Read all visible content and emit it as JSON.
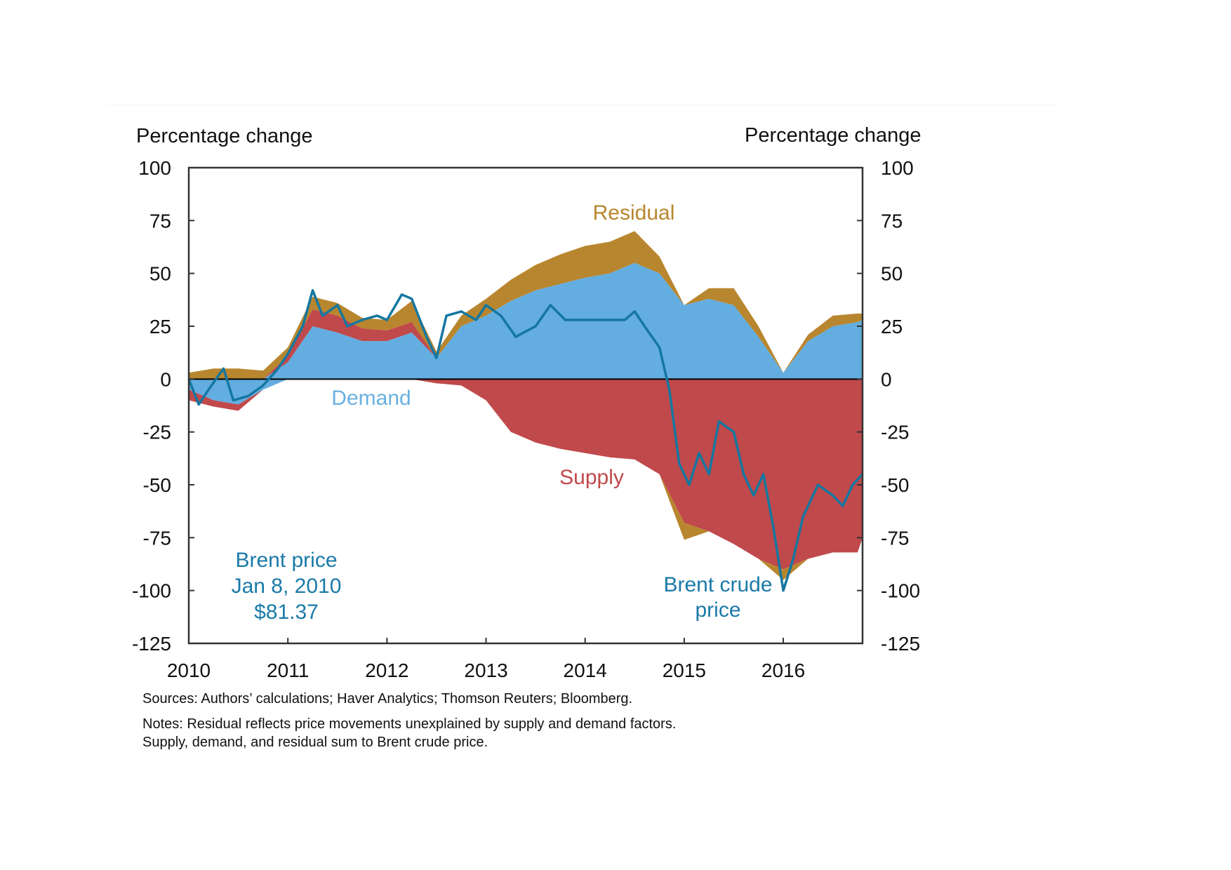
{
  "chart_data": {
    "type": "area",
    "stacked": true,
    "left_axis_title": "Percentage change",
    "right_axis_title": "Percentage change",
    "ylim": [
      -125,
      100
    ],
    "yticks": [
      "100",
      "75",
      "50",
      "25",
      "0",
      "-25",
      "-50",
      "-75",
      "-100",
      "-125"
    ],
    "ytick_values": [
      100,
      75,
      50,
      25,
      0,
      -25,
      -50,
      -75,
      -100,
      -125
    ],
    "xlim": [
      2010,
      2016.8
    ],
    "xticks": [
      "2010",
      "2011",
      "2012",
      "2013",
      "2014",
      "2015",
      "2016"
    ],
    "xtick_values": [
      2010,
      2011,
      2012,
      2013,
      2014,
      2015,
      2016
    ],
    "grid": false,
    "colors": {
      "demand": "#63ade0",
      "supply": "#c0494b",
      "residual": "#b8862e",
      "brent": "#1577a0"
    },
    "x": [
      2010,
      2010.25,
      2010.5,
      2010.75,
      2011,
      2011.25,
      2011.5,
      2011.75,
      2012,
      2012.25,
      2012.5,
      2012.75,
      2013,
      2013.25,
      2013.5,
      2013.75,
      2014,
      2014.25,
      2014.5,
      2014.75,
      2015,
      2015.25,
      2015.5,
      2015.75,
      2016,
      2016.25,
      2016.5,
      2016.75,
      2016.8
    ],
    "series": [
      {
        "name": "Demand",
        "values": [
          -5,
          -10,
          -12,
          -5,
          8,
          25,
          22,
          18,
          18,
          22,
          10,
          25,
          30,
          37,
          42,
          45,
          48,
          50,
          55,
          50,
          35,
          38,
          35,
          20,
          3,
          18,
          25,
          27,
          28
        ]
      },
      {
        "name": "Supply",
        "values": [
          -5,
          -3,
          -3,
          0,
          3,
          8,
          8,
          6,
          5,
          5,
          -2,
          -3,
          -10,
          -25,
          -30,
          -33,
          -35,
          -37,
          -38,
          -45,
          -68,
          -72,
          -78,
          -85,
          -90,
          -85,
          -82,
          -82,
          -75
        ]
      },
      {
        "name": "Residual",
        "values": [
          3,
          5,
          5,
          4,
          4,
          6,
          6,
          5,
          5,
          10,
          3,
          5,
          8,
          10,
          12,
          14,
          15,
          15,
          15,
          8,
          -8,
          5,
          8,
          5,
          -5,
          3,
          5,
          4,
          3
        ]
      }
    ],
    "brent_line": {
      "name": "Brent crude price",
      "x": [
        2010,
        2010.1,
        2010.2,
        2010.35,
        2010.45,
        2010.6,
        2010.75,
        2010.9,
        2011,
        2011.15,
        2011.25,
        2011.35,
        2011.5,
        2011.6,
        2011.75,
        2011.9,
        2012,
        2012.15,
        2012.25,
        2012.4,
        2012.5,
        2012.6,
        2012.75,
        2012.9,
        2013,
        2013.15,
        2013.3,
        2013.5,
        2013.65,
        2013.8,
        2014,
        2014.2,
        2014.4,
        2014.5,
        2014.6,
        2014.75,
        2014.85,
        2014.95,
        2015.05,
        2015.15,
        2015.25,
        2015.35,
        2015.5,
        2015.6,
        2015.7,
        2015.8,
        2015.9,
        2016,
        2016.1,
        2016.2,
        2016.35,
        2016.5,
        2016.6,
        2016.7,
        2016.8
      ],
      "values": [
        0,
        -12,
        -5,
        5,
        -10,
        -8,
        -3,
        5,
        12,
        25,
        42,
        30,
        35,
        25,
        28,
        30,
        28,
        40,
        38,
        20,
        10,
        30,
        32,
        28,
        35,
        30,
        20,
        25,
        35,
        28,
        28,
        28,
        28,
        32,
        25,
        15,
        -5,
        -40,
        -50,
        -35,
        -45,
        -20,
        -25,
        -45,
        -55,
        -45,
        -70,
        -100,
        -85,
        -65,
        -50,
        -55,
        -60,
        -50,
        -45
      ]
    },
    "annotations": {
      "residual": "Residual",
      "demand": "Demand",
      "supply": "Supply",
      "brent_crude_line1": "Brent crude",
      "brent_crude_line2": "price",
      "base_line1": "Brent price",
      "base_line2": "Jan 8, 2010",
      "base_line3": "$81.37"
    }
  },
  "footer": {
    "sources": "Sources: Authors’ calculations; Haver Analytics; Thomson Reuters; Bloomberg.",
    "notes_line1": "Notes: Residual reflects price movements unexplained by supply and demand factors.",
    "notes_line2": "Supply, demand, and residual sum to Brent crude price."
  }
}
